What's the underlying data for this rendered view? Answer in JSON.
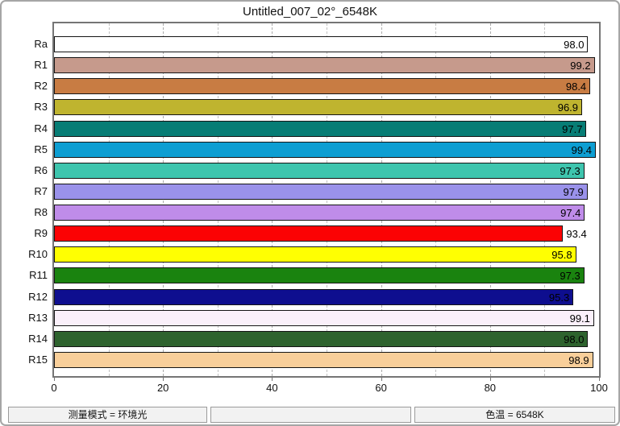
{
  "title": "Untitled_007_02°_6548K",
  "chart_data": {
    "type": "bar",
    "orientation": "horizontal",
    "title": "Untitled_007_02°_6548K",
    "categories": [
      "Ra",
      "R1",
      "R2",
      "R3",
      "R4",
      "R5",
      "R6",
      "R7",
      "R8",
      "R9",
      "R10",
      "R11",
      "R12",
      "R13",
      "R14",
      "R15"
    ],
    "values": [
      98.0,
      99.2,
      98.4,
      96.9,
      97.7,
      99.4,
      97.3,
      97.9,
      97.4,
      93.4,
      95.8,
      97.3,
      95.3,
      99.1,
      98.0,
      98.9
    ],
    "bar_colors": [
      "#ffffff",
      "#c69a8c",
      "#c87c43",
      "#bfb42f",
      "#077d75",
      "#0d9ed2",
      "#3ec5ae",
      "#9a92ea",
      "#bf8ce9",
      "#fb0204",
      "#ffff02",
      "#1a830f",
      "#0e0e8f",
      "#faf0fa",
      "#2e632e",
      "#f8cf9a"
    ],
    "xlim": [
      0,
      100
    ],
    "x_ticks": [
      0,
      20,
      40,
      60,
      80,
      100
    ],
    "minor_grid_step": 10,
    "grid": "vertical-dashed",
    "legend": "none",
    "value_label_decimals": 1,
    "outside_label_threshold": 95
  },
  "status_bar": {
    "left": "测量模式 = 环境光",
    "middle": "",
    "right": "色温 = 6548K"
  }
}
